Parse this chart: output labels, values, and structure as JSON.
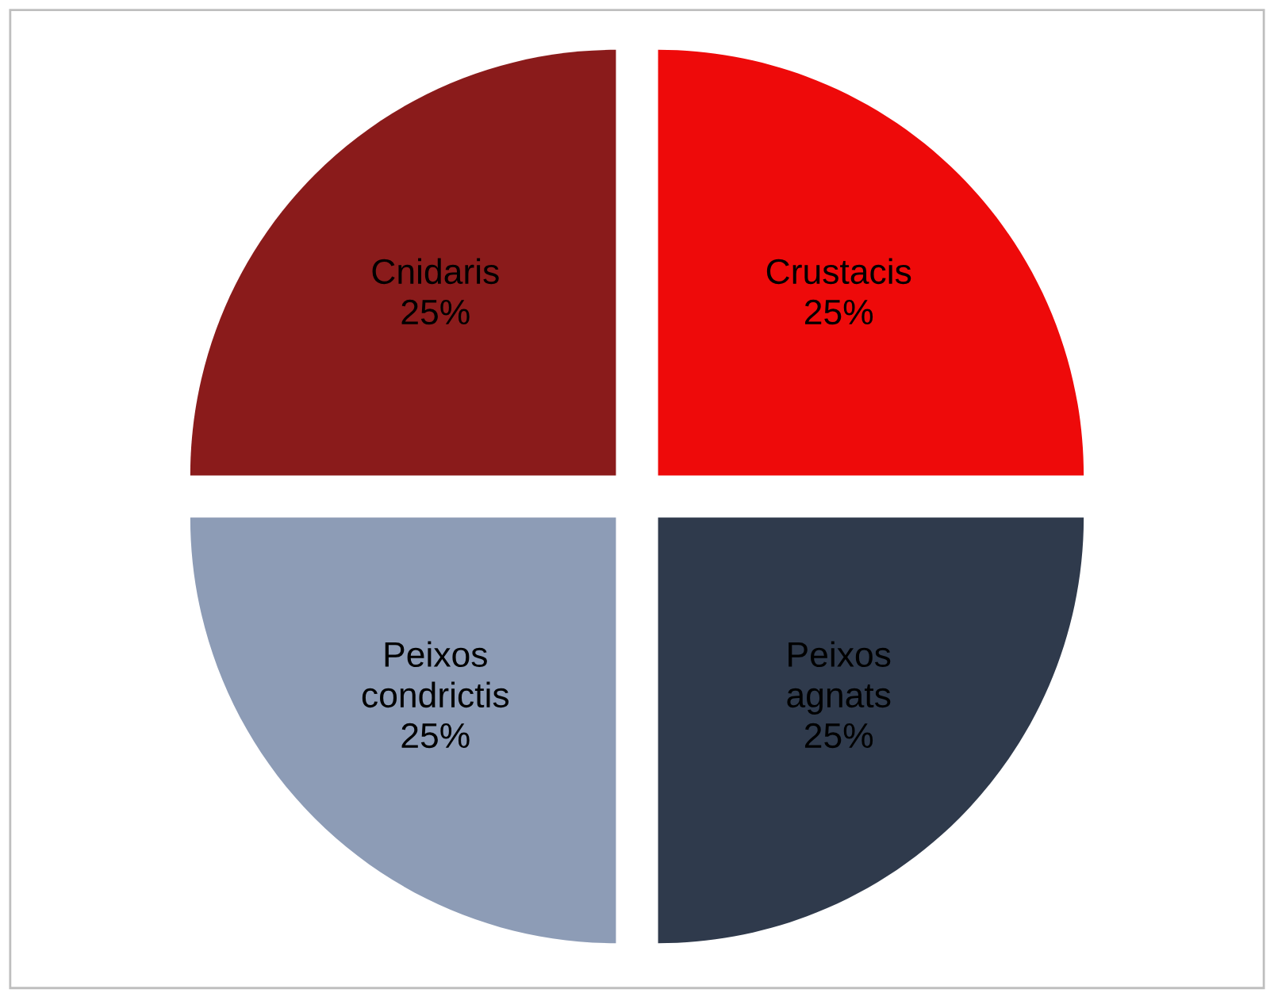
{
  "chart_data": {
    "type": "pie",
    "categories": [
      "Crustacis",
      "Peixos agnats",
      "Peixos condrictis",
      "Cnidaris"
    ],
    "values": [
      25,
      25,
      25,
      25
    ],
    "colors": [
      "#ee0a0a",
      "#2f3a4c",
      "#8d9cb6",
      "#8a1b1b"
    ],
    "value_labels": [
      "25%",
      "25%",
      "25%",
      "25%"
    ],
    "legend": false
  }
}
